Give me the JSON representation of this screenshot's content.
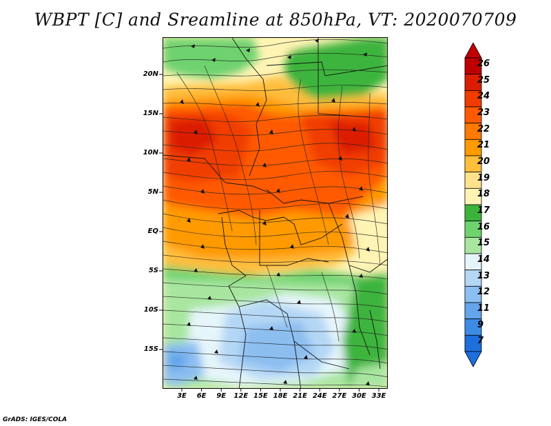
{
  "title": "WBPT [C] and Sreamline at 850hPa, VT: 2020070709",
  "credit": "GrADS: IGES/COLA",
  "lat_labels": [
    "20N",
    "15N",
    "10N",
    "5N",
    "EQ",
    "5S",
    "10S",
    "15S"
  ],
  "lon_labels": [
    "3E",
    "6E",
    "9E",
    "12E",
    "15E",
    "18E",
    "21E",
    "24E",
    "27E",
    "30E",
    "33E"
  ],
  "colorbar": {
    "labels": [
      "26",
      "25",
      "24",
      "23",
      "22",
      "21",
      "20",
      "19",
      "18",
      "17",
      "16",
      "15",
      "14",
      "13",
      "12",
      "11",
      "9",
      "7"
    ],
    "colors": [
      "#c00000",
      "#dc1e00",
      "#f03c00",
      "#ff5a00",
      "#ff7a00",
      "#ff9a00",
      "#ffbe3c",
      "#ffe38c",
      "#fff4b4",
      "#3cb43c",
      "#6ed26e",
      "#a8e6a0",
      "#e6f5fa",
      "#b4d7f5",
      "#8cbef0",
      "#64a5eb",
      "#3c8ce6",
      "#1e6edc"
    ]
  },
  "map_layers": {
    "regions": [
      {
        "name": "north-sahara",
        "color": "#fff4b4"
      },
      {
        "name": "green-north",
        "color": "#6ed26e"
      },
      {
        "name": "hot-band",
        "color": "#ff7a00"
      },
      {
        "name": "south-green",
        "color": "#a8e6a0"
      },
      {
        "name": "south-blue",
        "color": "#b4d7f5"
      }
    ]
  }
}
